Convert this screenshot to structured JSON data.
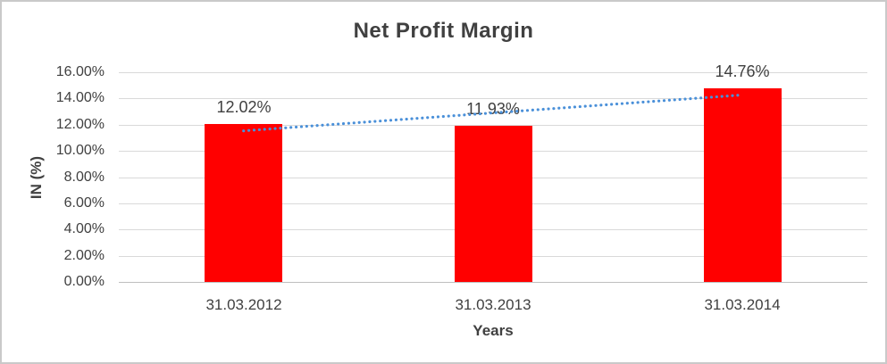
{
  "chart_data": {
    "type": "bar",
    "title": "Net Profit Margin",
    "xlabel": "Years",
    "ylabel": "IN (%)",
    "categories": [
      "31.03.2012",
      "31.03.2013",
      "31.03.2014"
    ],
    "series": [
      {
        "name": "Net Profit Margin",
        "color": "#FF0000",
        "values": [
          12.02,
          11.93,
          14.76
        ]
      }
    ],
    "data_labels": [
      "12.02%",
      "11.93%",
      "14.76%"
    ],
    "ylim": [
      0,
      16
    ],
    "ytick_step": 2,
    "ytick_labels": [
      "0.00%",
      "2.00%",
      "4.00%",
      "6.00%",
      "8.00%",
      "10.00%",
      "12.00%",
      "14.00%",
      "16.00%"
    ],
    "grid": true,
    "legend": "none",
    "trendline": {
      "type": "linear",
      "style": "dotted",
      "color": "#4A90D9",
      "start_value": 11.53,
      "end_value": 14.27
    },
    "colors": {
      "bar": "#FF0000",
      "gridline": "#D9D9D9",
      "axis_line": "#BFBFBF",
      "text": "#404040",
      "frame_border": "#C9C9C9",
      "background": "#FFFFFF"
    }
  }
}
